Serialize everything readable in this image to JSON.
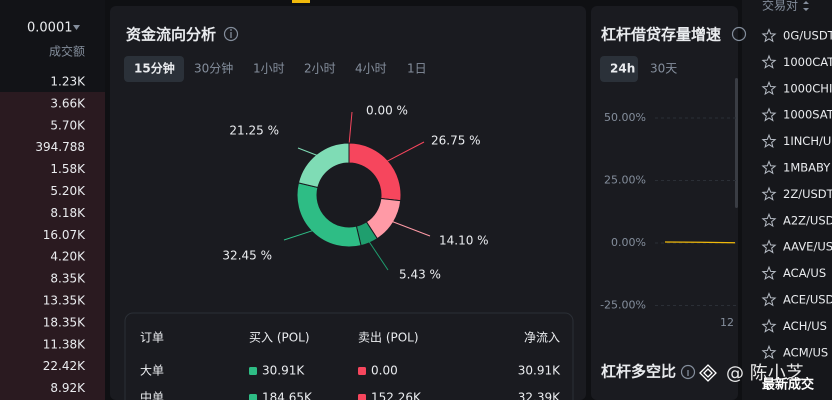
{
  "order_book": {
    "precision": "0.0001",
    "column": "成交额",
    "values": [
      "1.23K",
      "3.66K",
      "5.70K",
      "394.788",
      "1.58K",
      "5.20K",
      "8.18K",
      "16.07K",
      "4.20K",
      "8.35K",
      "13.35K",
      "18.35K",
      "11.38K",
      "22.42K",
      "8.92K"
    ]
  },
  "fund_flow": {
    "title": "资金流向分析",
    "tabs": [
      "15分钟",
      "30分钟",
      "1小时",
      "2小时",
      "4小时",
      "1日"
    ],
    "active_tab": 0,
    "segments": [
      {
        "value": 0,
        "label": "0.00 %",
        "color": "#f6465d"
      },
      {
        "value": 26.75,
        "label": "26.75 %",
        "color": "#f6465d"
      },
      {
        "value": 14.1,
        "label": "14.10 %",
        "color": "#ff9aa6"
      },
      {
        "value": 5.43,
        "label": "5.43 %",
        "color": "#1f9e6e"
      },
      {
        "value": 32.45,
        "label": "32.45 %",
        "color": "#2ebd85"
      },
      {
        "value": 21.25,
        "label": "21.25 %",
        "color": "#7fdcb5"
      }
    ],
    "table": {
      "headers": [
        "订单",
        "买入 (POL)",
        "卖出 (POL)",
        "净流入"
      ],
      "rows": [
        [
          "大单",
          "30.91K",
          "0.00",
          "30.91K"
        ],
        [
          "中单",
          "184.65K",
          "152.26K",
          "32.39K"
        ]
      ]
    }
  },
  "leverage": {
    "title": "杠杆借贷存量增速",
    "tabs": [
      "24h",
      "30天"
    ],
    "active_tab": 0,
    "ylim": [
      -30,
      60
    ],
    "yticks": [
      {
        "value": 50,
        "label": "50.00%"
      },
      {
        "value": 25,
        "label": "25.00%"
      },
      {
        "value": 0,
        "label": "0.00%"
      },
      {
        "value": -25,
        "label": "-25.00%"
      }
    ],
    "x_label": "12",
    "line": {
      "color": "#f0b90b",
      "values": [
        0.4,
        0.35,
        0.3,
        0.2,
        0.1
      ]
    }
  },
  "long_short": {
    "title": "杠杆多空比"
  },
  "pairs": {
    "header": "交易对",
    "items": [
      "0G/USDT",
      "1000CAT",
      "1000CHI",
      "1000SAT",
      "1INCH/U",
      "1MBABY",
      "2Z/USDT",
      "A2Z/USD",
      "AAVE/US",
      "ACA/US",
      "ACE/USD",
      "ACH/US",
      "ACM/US"
    ]
  },
  "watermark": "@ 陈小芝",
  "footer": "最新成交"
}
